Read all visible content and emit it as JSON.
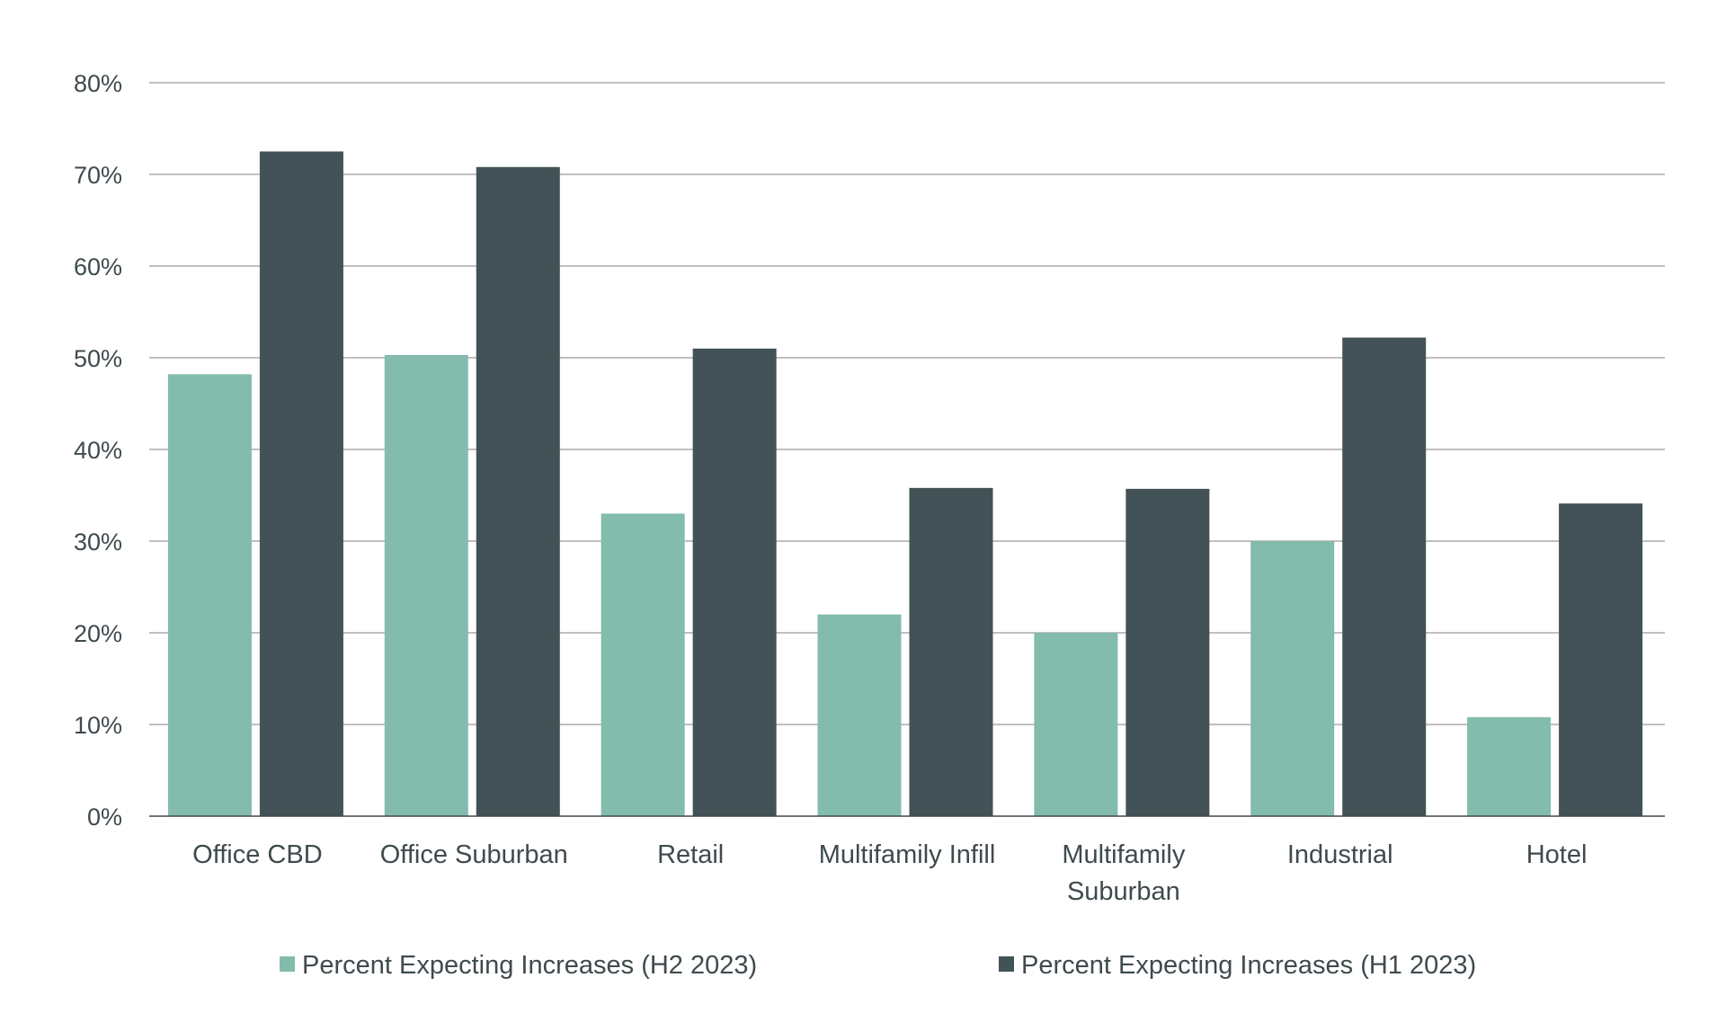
{
  "chart_data": {
    "type": "bar",
    "title": "",
    "xlabel": "",
    "ylabel": "",
    "ylim": [
      0,
      80
    ],
    "yticks": [
      0,
      10,
      20,
      30,
      40,
      50,
      60,
      70,
      80
    ],
    "ytick_labels": [
      "0%",
      "10%",
      "20%",
      "30%",
      "40%",
      "50%",
      "60%",
      "70%",
      "80%"
    ],
    "grid": true,
    "legend_position": "bottom",
    "categories": [
      [
        "Office CBD"
      ],
      [
        "Office Suburban"
      ],
      [
        "Retail"
      ],
      [
        "Multifamily Infill"
      ],
      [
        "Multifamily",
        "Suburban"
      ],
      [
        "Industrial"
      ],
      [
        "Hotel"
      ]
    ],
    "series": [
      {
        "name": "Percent Expecting Increases (H2 2023)",
        "color": "#83bbad",
        "values": [
          48.2,
          50.3,
          33.0,
          22.0,
          20.0,
          30.0,
          10.8
        ]
      },
      {
        "name": "Percent Expecting Increases (H1 2023)",
        "color": "#435256",
        "values": [
          72.5,
          70.8,
          51.0,
          35.8,
          35.7,
          52.2,
          34.1
        ]
      }
    ]
  }
}
